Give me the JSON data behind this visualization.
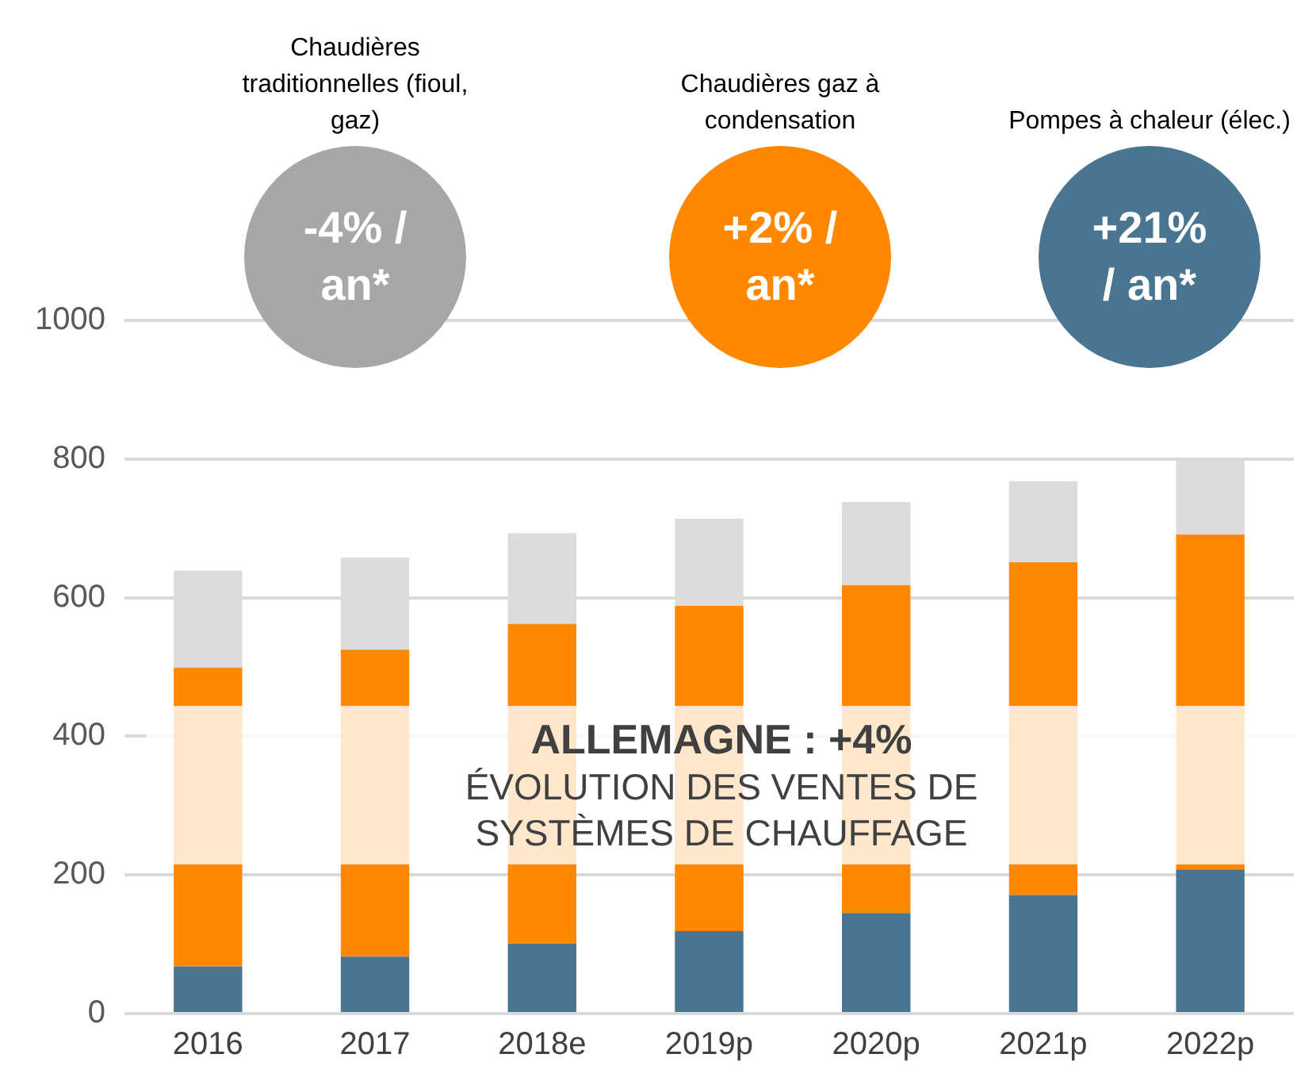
{
  "chart_data": {
    "type": "bar",
    "stacked": true,
    "title": "ALLEMAGNE : +4%",
    "subtitle": "ÉVOLUTION DES VENTES DE SYSTÈMES DE CHAUFFAGE",
    "categories": [
      "2016",
      "2017",
      "2018e",
      "2019p",
      "2020p",
      "2021p",
      "2022p"
    ],
    "series": [
      {
        "color": "#4a7590",
        "values": [
          68,
          82,
          101,
          119,
          145,
          171,
          208
        ]
      },
      {
        "color": "#ff8800",
        "values": [
          431,
          443,
          461,
          469,
          473,
          480,
          483
        ]
      },
      {
        "color": "#dcdcdc",
        "values": [
          140,
          133,
          131,
          126,
          120,
          117,
          109
        ]
      }
    ],
    "annotations": [
      "Chaudières traditionnelles (fioul, gaz)",
      "-4% / an*",
      "Chaudières gaz à condensation",
      "+2% / an*",
      "Pompes à chaleur (élec.)",
      "+21% / an*"
    ],
    "ylim": [
      0,
      1000
    ],
    "yticks": [
      0,
      200,
      400,
      600,
      800,
      1000
    ],
    "grid": "y"
  }
}
